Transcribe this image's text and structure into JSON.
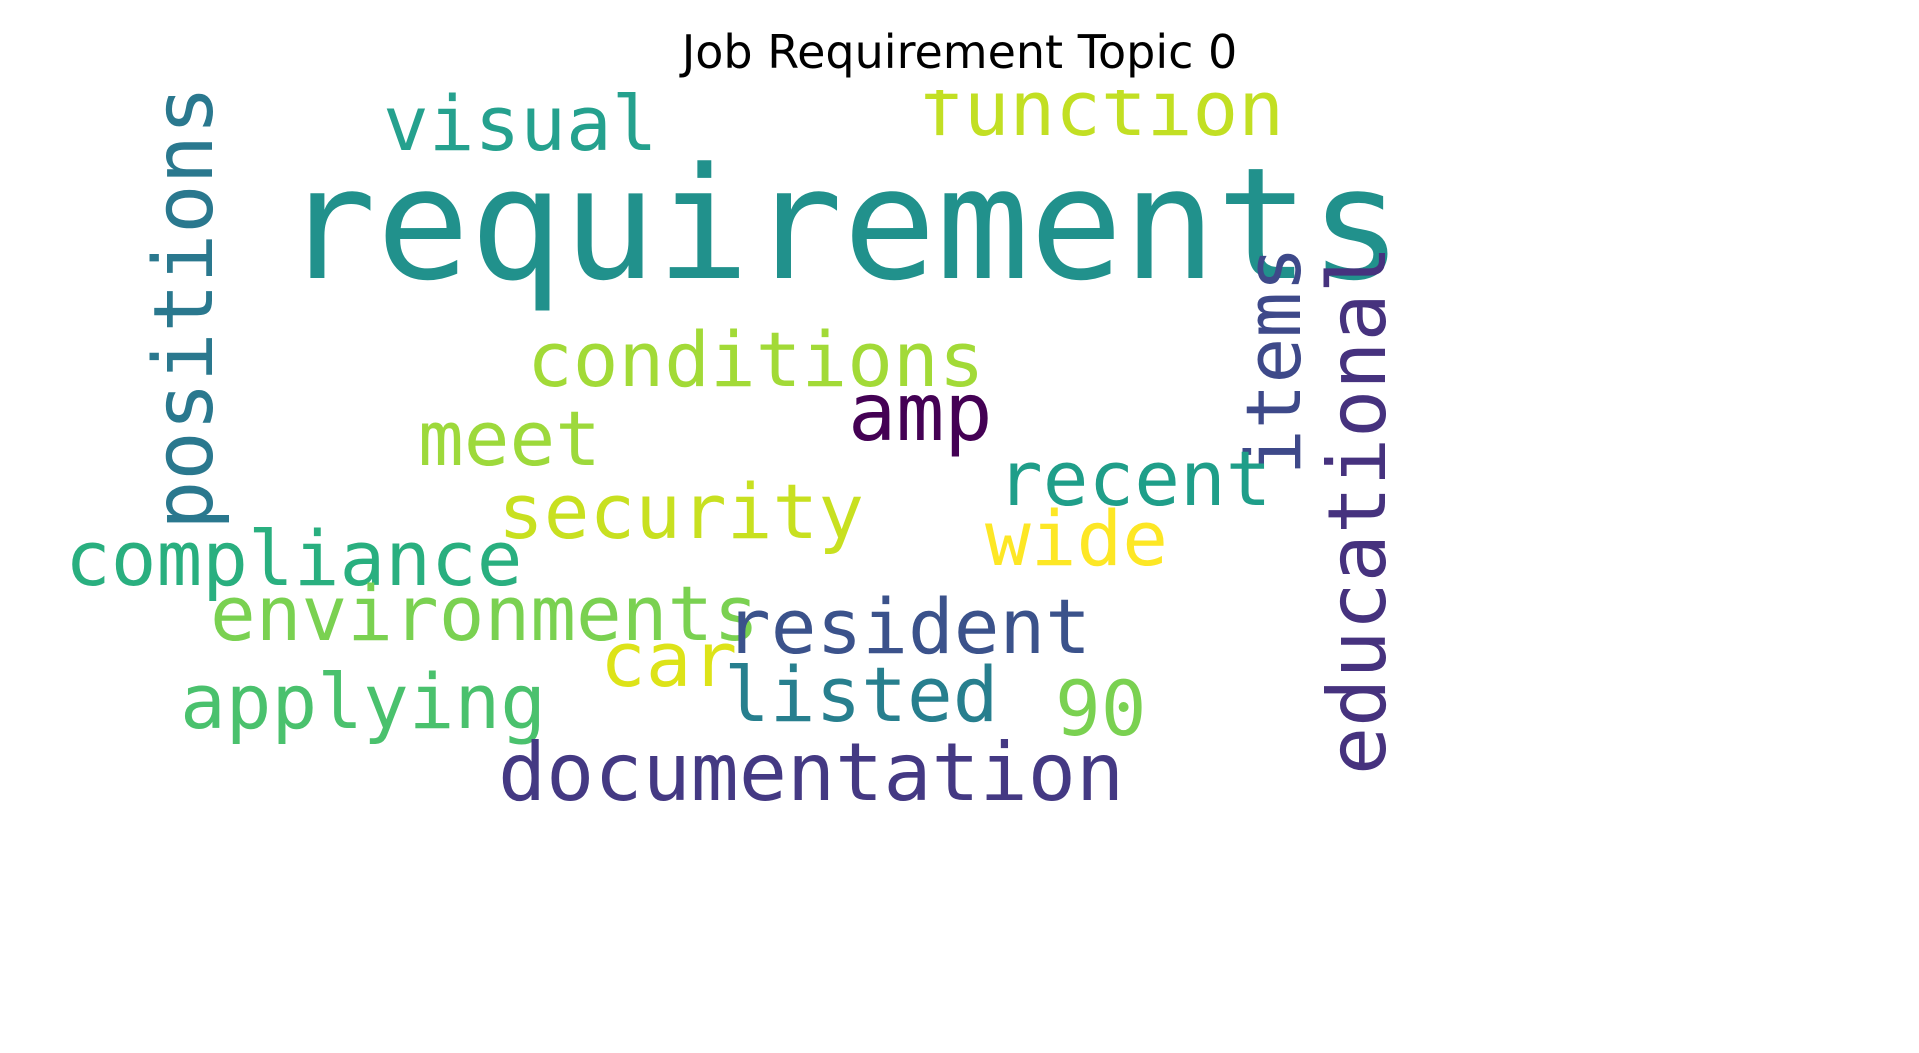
{
  "title": "Job Requirement Topic 0",
  "words": [
    {
      "text": "requirements",
      "color": "#21918c",
      "weight": 1.0
    },
    {
      "text": "function",
      "color": "#c2df23",
      "weight": 0.42
    },
    {
      "text": "visual",
      "color": "#25a18e",
      "weight": 0.42
    },
    {
      "text": "positions",
      "color": "#2a788e",
      "weight": 0.44
    },
    {
      "text": "conditions",
      "color": "#a2da37",
      "weight": 0.42
    },
    {
      "text": "amp",
      "color": "#440154",
      "weight": 0.44
    },
    {
      "text": "items",
      "color": "#3e4989",
      "weight": 0.42
    },
    {
      "text": "educational",
      "color": "#46327e",
      "weight": 0.43
    },
    {
      "text": "meet",
      "color": "#9dd93b",
      "weight": 0.42
    },
    {
      "text": "recent",
      "color": "#1f9e89",
      "weight": 0.42
    },
    {
      "text": "security",
      "color": "#c8e020",
      "weight": 0.42
    },
    {
      "text": "wide",
      "color": "#fde725",
      "weight": 0.42
    },
    {
      "text": "compliance",
      "color": "#29af7f",
      "weight": 0.42
    },
    {
      "text": "environments",
      "color": "#7ad151",
      "weight": 0.42
    },
    {
      "text": "resident",
      "color": "#3b528b",
      "weight": 0.42
    },
    {
      "text": "car",
      "color": "#dde318",
      "weight": 0.42
    },
    {
      "text": "applying",
      "color": "#4ac16d",
      "weight": 0.42
    },
    {
      "text": "listed",
      "color": "#277f8e",
      "weight": 0.42
    },
    {
      "text": "90",
      "color": "#7ad151",
      "weight": 0.42
    },
    {
      "text": "documentation",
      "color": "#443983",
      "weight": 0.42
    }
  ]
}
